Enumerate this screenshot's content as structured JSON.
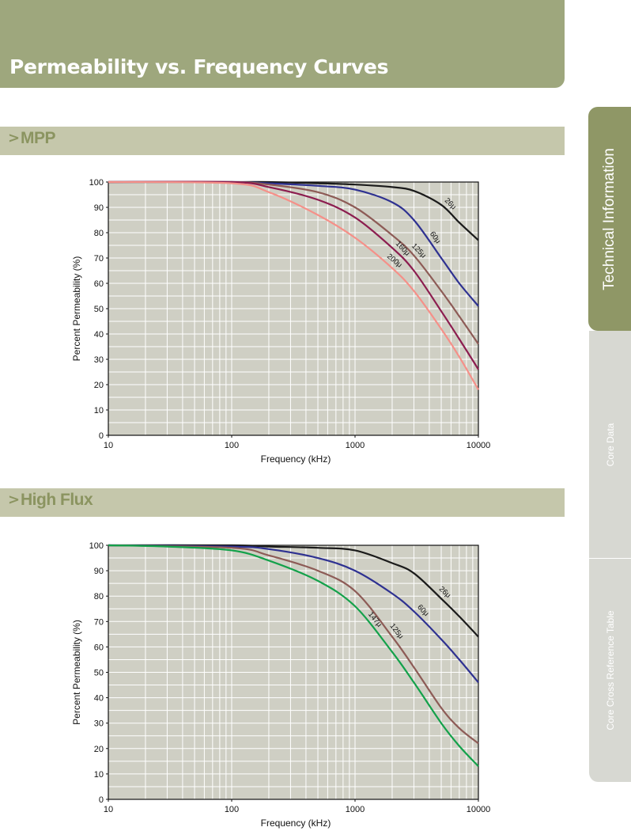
{
  "page": {
    "title": "Permeability vs. Frequency Curves"
  },
  "sidebar": {
    "tabs": [
      {
        "label": "Technical Information",
        "active": true
      },
      {
        "label": "Core Data",
        "active": false
      },
      {
        "label": "Core Cross Reference Table",
        "active": false
      }
    ]
  },
  "colors": {
    "header": "#9ea77d",
    "section_bar": "#c5c7ab",
    "plot_background": "#cfcfc4",
    "grid": "#ffffff"
  },
  "chart_data": [
    {
      "type": "line",
      "title": "MPP",
      "xlabel": "Frequency (kHz)",
      "ylabel": "Percent Permeability (%)",
      "xscale": "log",
      "xlim": [
        10,
        10000
      ],
      "ylim": [
        0,
        100
      ],
      "x_ticks": [
        10,
        100,
        1000,
        10000
      ],
      "y_ticks": [
        0,
        10,
        20,
        30,
        40,
        50,
        60,
        70,
        80,
        90,
        100
      ],
      "grid": true,
      "series": [
        {
          "name": "26μ",
          "color": "#1a1a1a",
          "x": [
            10,
            100,
            200,
            500,
            1000,
            2000,
            3000,
            5000,
            7000,
            10000
          ],
          "y": [
            100,
            100,
            100,
            99.5,
            99,
            98,
            96.5,
            91,
            84,
            77
          ]
        },
        {
          "name": "60μ",
          "color": "#2e3191",
          "x": [
            10,
            100,
            200,
            500,
            1000,
            2000,
            3000,
            5000,
            7000,
            10000
          ],
          "y": [
            100,
            100,
            99.5,
            98.5,
            97,
            92,
            85,
            70,
            60,
            51
          ]
        },
        {
          "name": "125μ",
          "color": "#8d5b56",
          "x": [
            10,
            100,
            200,
            500,
            1000,
            2000,
            3000,
            5000,
            7000,
            10000
          ],
          "y": [
            100,
            100,
            99,
            96,
            90,
            79,
            71,
            57,
            47,
            36
          ]
        },
        {
          "name": "160μ",
          "color": "#8c1d4f",
          "x": [
            10,
            100,
            200,
            500,
            1000,
            2000,
            3000,
            5000,
            7000,
            10000
          ],
          "y": [
            100,
            100,
            98,
            93,
            86,
            74,
            65,
            49,
            38,
            26
          ]
        },
        {
          "name": "200μ",
          "color": "#f59089",
          "x": [
            10,
            100,
            200,
            500,
            1000,
            2000,
            3000,
            5000,
            7000,
            10000
          ],
          "y": [
            100,
            99.5,
            96,
            87,
            78,
            66,
            57,
            42,
            31,
            18
          ]
        }
      ]
    },
    {
      "type": "line",
      "title": "High Flux",
      "xlabel": "Frequency (kHz)",
      "ylabel": "Percent Permeability (%)",
      "xscale": "log",
      "xlim": [
        10,
        10000
      ],
      "ylim": [
        0,
        100
      ],
      "x_ticks": [
        10,
        100,
        1000,
        10000
      ],
      "y_ticks": [
        0,
        10,
        20,
        30,
        40,
        50,
        60,
        70,
        80,
        90,
        100
      ],
      "grid": true,
      "series": [
        {
          "name": "26μ",
          "color": "#1a1a1a",
          "x": [
            10,
            100,
            200,
            500,
            1000,
            2000,
            3000,
            5000,
            7000,
            10000
          ],
          "y": [
            100,
            100,
            99.5,
            99,
            98,
            93,
            89,
            79,
            72,
            64
          ]
        },
        {
          "name": "60μ",
          "color": "#2e3191",
          "x": [
            10,
            100,
            200,
            500,
            1000,
            2000,
            3000,
            5000,
            7000,
            10000
          ],
          "y": [
            100,
            99.5,
            98.5,
            95,
            90,
            81,
            74,
            63,
            55,
            46
          ]
        },
        {
          "name": "125μ",
          "color": "#8d5b56",
          "x": [
            10,
            100,
            200,
            500,
            1000,
            2000,
            3000,
            5000,
            7000,
            10000
          ],
          "y": [
            100,
            99,
            96,
            90,
            82,
            64,
            52,
            36,
            28,
            22
          ]
        },
        {
          "name": "147μ",
          "color": "#13a14a",
          "x": [
            10,
            30,
            100,
            200,
            500,
            1000,
            2000,
            3000,
            5000,
            7000,
            10000
          ],
          "y": [
            100,
            99.5,
            98,
            94,
            86,
            76,
            58,
            46,
            30,
            21,
            13
          ]
        }
      ]
    }
  ]
}
